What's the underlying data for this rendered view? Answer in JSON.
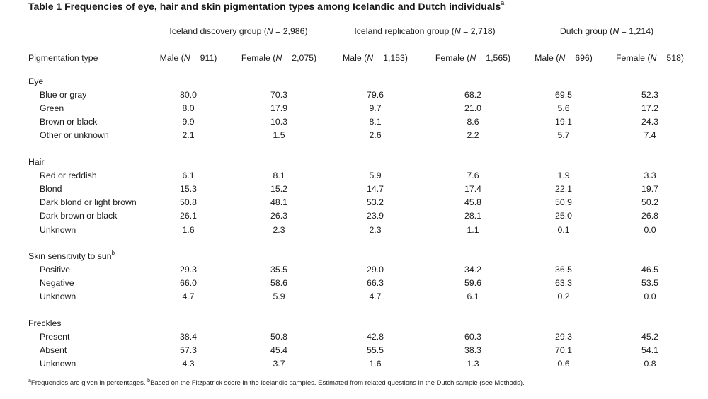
{
  "table": {
    "caption_prefix": "Table 1",
    "caption_text": "Frequencies of eye, hair and skin pigmentation types among Icelandic and Dutch individuals",
    "caption_sup": "a",
    "row_header": "Pigmentation type",
    "groups": [
      {
        "label": "Iceland discovery group (N = 2,986)"
      },
      {
        "label": "Iceland replication group (N = 2,718)"
      },
      {
        "label": "Dutch group (N = 1,214)"
      }
    ],
    "columns": [
      "Male (N = 911)",
      "Female (N = 2,075)",
      "Male (N = 1,153)",
      "Female (N = 1,565)",
      "Male (N = 696)",
      "Female (N = 518)"
    ],
    "sections": [
      {
        "title": "Eye",
        "title_sup": "",
        "rows": [
          {
            "label": "Blue or gray",
            "values": [
              "80.0",
              "70.3",
              "79.6",
              "68.2",
              "69.5",
              "52.3"
            ]
          },
          {
            "label": "Green",
            "values": [
              "8.0",
              "17.9",
              "9.7",
              "21.0",
              "5.6",
              "17.2"
            ]
          },
          {
            "label": "Brown or black",
            "values": [
              "9.9",
              "10.3",
              "8.1",
              "8.6",
              "19.1",
              "24.3"
            ]
          },
          {
            "label": "Other or unknown",
            "values": [
              "2.1",
              "1.5",
              "2.6",
              "2.2",
              "5.7",
              "7.4"
            ]
          }
        ]
      },
      {
        "title": "Hair",
        "title_sup": "",
        "rows": [
          {
            "label": "Red or reddish",
            "values": [
              "6.1",
              "8.1",
              "5.9",
              "7.6",
              "1.9",
              "3.3"
            ]
          },
          {
            "label": "Blond",
            "values": [
              "15.3",
              "15.2",
              "14.7",
              "17.4",
              "22.1",
              "19.7"
            ]
          },
          {
            "label": "Dark blond or light brown",
            "values": [
              "50.8",
              "48.1",
              "53.2",
              "45.8",
              "50.9",
              "50.2"
            ]
          },
          {
            "label": "Dark brown or black",
            "values": [
              "26.1",
              "26.3",
              "23.9",
              "28.1",
              "25.0",
              "26.8"
            ]
          },
          {
            "label": "Unknown",
            "values": [
              "1.6",
              "2.3",
              "2.3",
              "1.1",
              "0.1",
              "0.0"
            ]
          }
        ]
      },
      {
        "title": "Skin sensitivity to sun",
        "title_sup": "b",
        "rows": [
          {
            "label": "Positive",
            "values": [
              "29.3",
              "35.5",
              "29.0",
              "34.2",
              "36.5",
              "46.5"
            ]
          },
          {
            "label": "Negative",
            "values": [
              "66.0",
              "58.6",
              "66.3",
              "59.6",
              "63.3",
              "53.5"
            ]
          },
          {
            "label": "Unknown",
            "values": [
              "4.7",
              "5.9",
              "4.7",
              "6.1",
              "0.2",
              "0.0"
            ]
          }
        ]
      },
      {
        "title": "Freckles",
        "title_sup": "",
        "rows": [
          {
            "label": "Present",
            "values": [
              "38.4",
              "50.8",
              "42.8",
              "60.3",
              "29.3",
              "45.2"
            ]
          },
          {
            "label": "Absent",
            "values": [
              "57.3",
              "45.4",
              "55.5",
              "38.3",
              "70.1",
              "54.1"
            ]
          },
          {
            "label": "Unknown",
            "values": [
              "4.3",
              "3.7",
              "1.6",
              "1.3",
              "0.6",
              "0.8"
            ]
          }
        ]
      }
    ],
    "footnote_a_mark": "a",
    "footnote_a": "Frequencies are given in percentages.",
    "footnote_b_mark": "b",
    "footnote_b": "Based on the Fitzpatrick score in the Icelandic samples. Estimated from related questions in the Dutch sample (see Methods)."
  }
}
